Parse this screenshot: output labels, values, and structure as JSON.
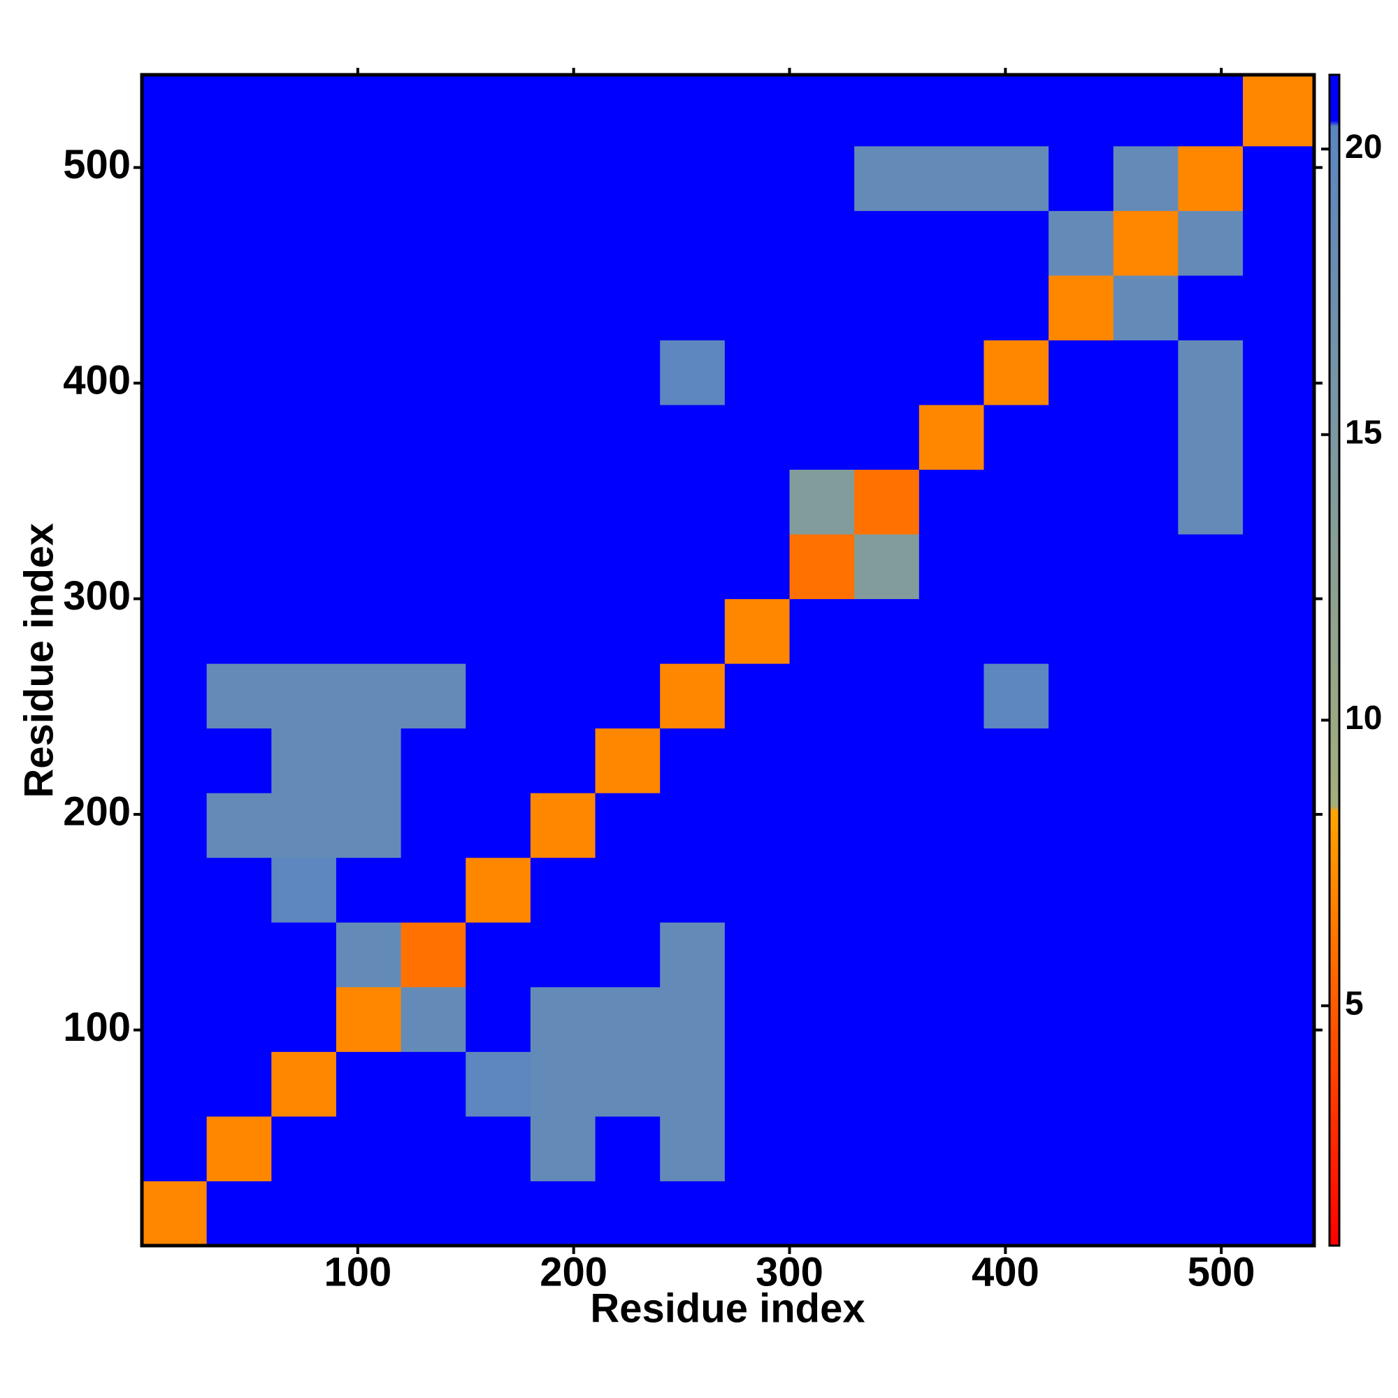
{
  "chart_data": {
    "type": "heatmap",
    "xlabel": "Residue index",
    "ylabel": "Residue index",
    "xlim": [
      0,
      543
    ],
    "ylim": [
      0,
      543
    ],
    "xticks": [
      100,
      200,
      300,
      400,
      500
    ],
    "yticks": [
      100,
      200,
      300,
      400,
      500
    ],
    "xbins": [
      0,
      30,
      60,
      90,
      120,
      150,
      180,
      210,
      240,
      270,
      300,
      330,
      360,
      390,
      420,
      450,
      480,
      510,
      543
    ],
    "ybins": [
      0,
      30,
      60,
      90,
      120,
      150,
      180,
      210,
      240,
      270,
      300,
      330,
      360,
      390,
      420,
      450,
      480,
      510,
      543
    ],
    "z": [
      [
        7,
        21,
        21,
        21,
        21,
        21,
        21,
        21,
        21,
        21,
        21,
        21,
        21,
        21,
        21,
        21,
        21,
        21
      ],
      [
        21,
        7,
        21,
        21,
        21,
        21,
        19,
        21,
        19,
        21,
        21,
        21,
        21,
        21,
        21,
        21,
        21,
        21
      ],
      [
        21,
        21,
        7,
        21,
        21,
        20,
        19,
        19,
        19,
        21,
        21,
        21,
        21,
        21,
        21,
        21,
        21,
        21
      ],
      [
        21,
        21,
        21,
        7,
        19,
        21,
        19,
        19,
        19,
        21,
        21,
        21,
        21,
        21,
        21,
        21,
        21,
        21
      ],
      [
        21,
        21,
        21,
        19,
        6,
        21,
        21,
        21,
        19,
        21,
        21,
        21,
        21,
        21,
        21,
        21,
        21,
        21
      ],
      [
        21,
        21,
        20,
        21,
        21,
        7,
        21,
        21,
        21,
        21,
        21,
        21,
        21,
        21,
        21,
        21,
        21,
        21
      ],
      [
        21,
        19,
        19,
        19,
        21,
        21,
        7,
        21,
        21,
        21,
        21,
        21,
        21,
        21,
        21,
        21,
        21,
        21
      ],
      [
        21,
        21,
        19,
        19,
        21,
        21,
        21,
        7,
        21,
        21,
        21,
        21,
        21,
        21,
        21,
        21,
        21,
        21
      ],
      [
        21,
        19,
        19,
        19,
        19,
        21,
        21,
        21,
        7,
        21,
        21,
        21,
        21,
        20,
        21,
        21,
        21,
        21
      ],
      [
        21,
        21,
        21,
        21,
        21,
        21,
        21,
        21,
        21,
        7,
        21,
        21,
        21,
        21,
        21,
        21,
        21,
        21
      ],
      [
        21,
        21,
        21,
        21,
        21,
        21,
        21,
        21,
        21,
        21,
        6,
        14,
        21,
        21,
        21,
        21,
        21,
        21
      ],
      [
        21,
        21,
        21,
        21,
        21,
        21,
        21,
        21,
        21,
        21,
        14,
        6,
        21,
        21,
        21,
        21,
        19,
        21
      ],
      [
        21,
        21,
        21,
        21,
        21,
        21,
        21,
        21,
        21,
        21,
        21,
        21,
        7,
        21,
        21,
        21,
        19,
        21
      ],
      [
        21,
        21,
        21,
        21,
        21,
        21,
        21,
        21,
        20,
        21,
        21,
        21,
        21,
        7,
        21,
        21,
        19,
        21
      ],
      [
        21,
        21,
        21,
        21,
        21,
        21,
        21,
        21,
        21,
        21,
        21,
        21,
        21,
        21,
        7,
        19,
        21,
        21
      ],
      [
        21,
        21,
        21,
        21,
        21,
        21,
        21,
        21,
        21,
        21,
        21,
        21,
        21,
        21,
        19,
        7,
        19,
        21
      ],
      [
        21,
        21,
        21,
        21,
        21,
        21,
        21,
        21,
        21,
        21,
        21,
        19,
        19,
        19,
        21,
        19,
        7,
        21
      ],
      [
        21,
        21,
        21,
        21,
        21,
        21,
        21,
        21,
        21,
        21,
        21,
        21,
        21,
        21,
        21,
        21,
        21,
        7
      ]
    ],
    "zlim": [
      0.8,
      21.3
    ],
    "zticks": [
      5,
      10,
      15,
      20
    ],
    "colorscale": [
      {
        "value": 0.8,
        "color": "#ff0000"
      },
      {
        "value": 8.4,
        "color": "#ffa500"
      },
      {
        "value": 8.5,
        "color": "#a4ae7c"
      },
      {
        "value": 20.4,
        "color": "#5b86c0"
      },
      {
        "value": 20.5,
        "color": "#0000ff"
      },
      {
        "value": 21.3,
        "color": "#0000ff"
      }
    ]
  }
}
